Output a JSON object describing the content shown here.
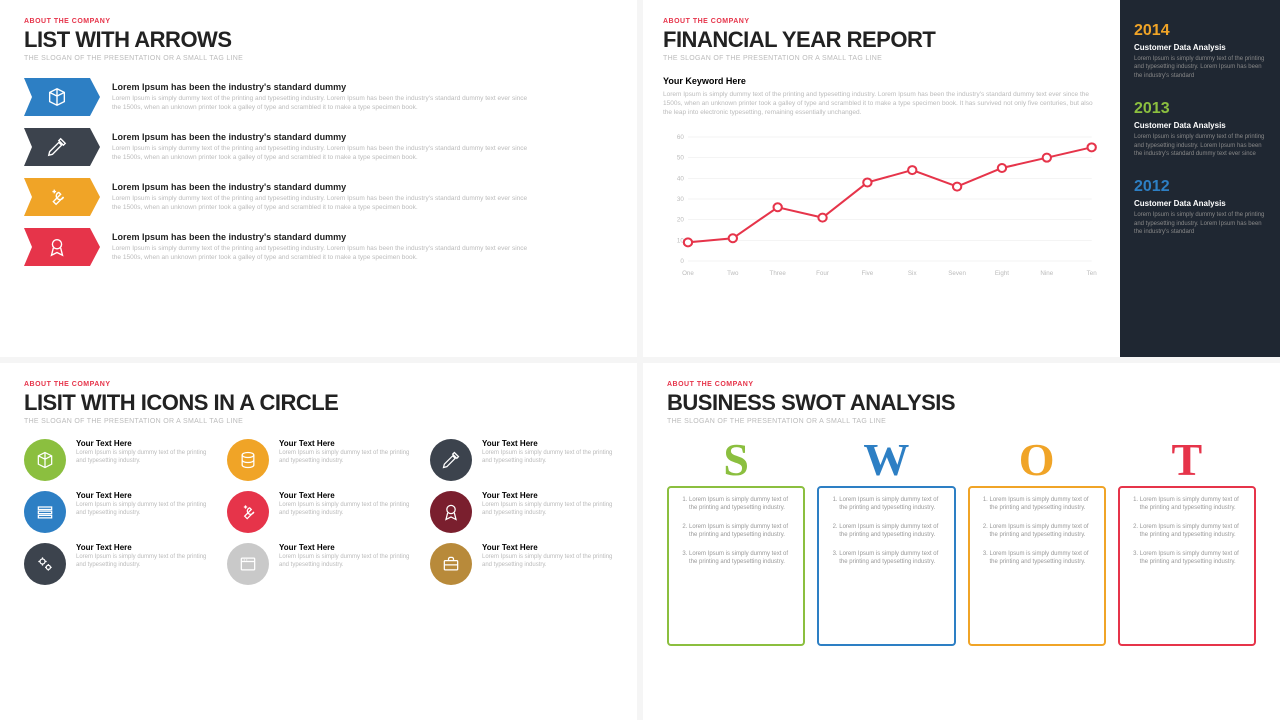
{
  "common": {
    "kicker": "ABOUT THE COMPANY",
    "slogan": "THE SLOGAN OF THE PRESENTATION OR A SMALL TAG LINE",
    "lorem_heading": "Lorem Ipsum has been the industry's standard dummy",
    "lorem_body": "Lorem Ipsum is simply dummy text of the printing and typesetting industry. Lorem Ipsum has been the industry's standard dummy text ever since the 1500s, when an unknown printer took a galley of type and scrambled it to make a type specimen book.",
    "small_lorem": "Lorem Ipsum is simply dummy text of the printing and typesetting industry."
  },
  "p1": {
    "title": "LIST WITH ARROWS",
    "items": [
      {
        "color": "#2d7fc4",
        "icon": "cube"
      },
      {
        "color": "#3c434d",
        "icon": "pencil-ruler"
      },
      {
        "color": "#f0a427",
        "icon": "wrench"
      },
      {
        "color": "#e6344a",
        "icon": "ribbon"
      }
    ]
  },
  "p2": {
    "title": "FINANCIAL YEAR REPORT",
    "keyword": "Your Keyword Here",
    "desc": "Lorem Ipsum is simply dummy text of the printing and typesetting industry. Lorem Ipsum has been the industry's standard dummy text ever since the 1500s, when an unknown printer took a galley of type and scrambled it to make a type specimen book. It has survived not only five centuries, but also the leap into electronic typesetting, remaining essentially unchanged.",
    "chart": {
      "type": "line",
      "line_color": "#e6344a",
      "marker_color": "#e6344a",
      "marker_fill": "#ffffff",
      "line_width": 2,
      "marker_radius": 4,
      "grid_color": "#e8e8e8",
      "axis_color": "#cccccc",
      "background": "#ffffff",
      "ylim": [
        0,
        60
      ],
      "ytick_step": 10,
      "x_labels": [
        "One",
        "Two",
        "Three",
        "Four",
        "Five",
        "Six",
        "Seven",
        "Eight",
        "Nine",
        "Ten"
      ],
      "values": [
        9,
        11,
        26,
        21,
        38,
        44,
        36,
        45,
        50,
        55
      ],
      "label_fontsize": 6,
      "label_color": "#bbbbbb"
    },
    "years": [
      {
        "y": "2014",
        "color": "#f0a427",
        "sub": "Customer Data Analysis",
        "body": "Lorem Ipsum is simply dummy text of the printing and typesetting industry. Lorem Ipsum has been the industry's standard"
      },
      {
        "y": "2013",
        "color": "#8bbf3f",
        "sub": "Customer Data Analysis",
        "body": "Lorem Ipsum is simply dummy text of the printing and typesetting industry. Lorem Ipsum has been the industry's standard dummy text ever since"
      },
      {
        "y": "2012",
        "color": "#2d7fc4",
        "sub": "Customer Data Analysis",
        "body": "Lorem Ipsum is simply dummy text of the printing and typesetting industry. Lorem Ipsum has been the industry's standard"
      }
    ]
  },
  "p3": {
    "title": "LISIT WITH ICONS IN A CIRCLE",
    "item_heading": "Your Text Here",
    "items": [
      {
        "color": "#8bbf3f",
        "icon": "cube"
      },
      {
        "color": "#f0a427",
        "icon": "database"
      },
      {
        "color": "#3c434d",
        "icon": "pencil-ruler"
      },
      {
        "color": "#2d7fc4",
        "icon": "books"
      },
      {
        "color": "#e6344a",
        "icon": "wrench"
      },
      {
        "color": "#7a1f2e",
        "icon": "ribbon"
      },
      {
        "color": "#3c434d",
        "icon": "gears"
      },
      {
        "color": "#c9c9c9",
        "icon": "window"
      },
      {
        "color": "#b88a3a",
        "icon": "briefcase"
      }
    ]
  },
  "p4": {
    "title": "BUSINESS SWOT ANALYSIS",
    "item_text": "Lorem Ipsum is simply dummy text of the printing and typesetting industry.",
    "cols": [
      {
        "letter": "S",
        "color": "#8bbf3f"
      },
      {
        "letter": "W",
        "color": "#2d7fc4"
      },
      {
        "letter": "O",
        "color": "#f0a427"
      },
      {
        "letter": "T",
        "color": "#e6344a"
      }
    ]
  }
}
